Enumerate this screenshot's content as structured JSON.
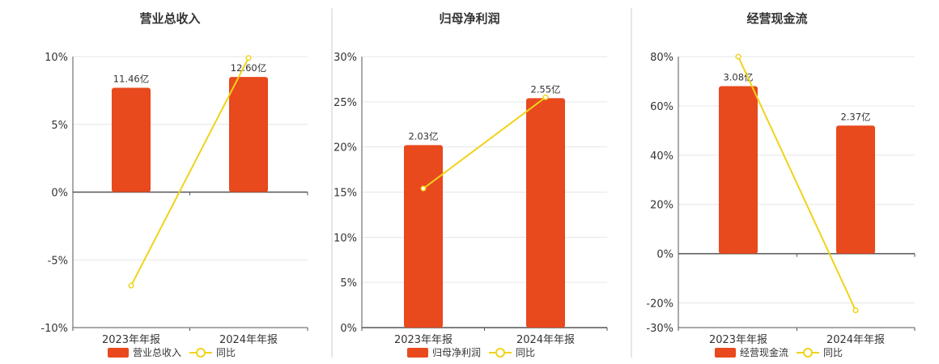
{
  "colors": {
    "bar": "#E8491D",
    "line": "#F0D31A",
    "grid": "#E6E6E6",
    "axis": "#555555",
    "divider": "#CCCCCC"
  },
  "chart_data": [
    {
      "type": "bar",
      "title": "营业总收入",
      "categories": [
        "2023年年报",
        "2024年年报"
      ],
      "series": [
        {
          "name": "营业总收入",
          "type": "bar",
          "values": [
            7.7,
            8.5
          ],
          "labels": [
            "11.46亿",
            "12.60亿"
          ]
        },
        {
          "name": "同比",
          "type": "line",
          "values": [
            -6.9,
            9.9
          ]
        }
      ],
      "ylim": [
        -10,
        10
      ],
      "yticks": [
        "10%",
        "5%",
        "0%",
        "-5%",
        "-10%"
      ],
      "ytick_values": [
        10,
        5,
        0,
        -5,
        -10
      ],
      "legend": "bottom",
      "grid": true
    },
    {
      "type": "bar",
      "title": "归母净利润",
      "categories": [
        "2023年年报",
        "2024年年报"
      ],
      "series": [
        {
          "name": "归母净利润",
          "type": "bar",
          "values": [
            20.2,
            25.4
          ],
          "labels": [
            "2.03亿",
            "2.55亿"
          ]
        },
        {
          "name": "同比",
          "type": "line",
          "values": [
            15.4,
            25.5
          ]
        }
      ],
      "ylim": [
        0,
        30
      ],
      "yticks": [
        "30%",
        "25%",
        "20%",
        "15%",
        "10%",
        "5%",
        "0%"
      ],
      "ytick_values": [
        30,
        25,
        20,
        15,
        10,
        5,
        0
      ],
      "legend": "bottom",
      "grid": true
    },
    {
      "type": "bar",
      "title": "经营现金流",
      "categories": [
        "2023年年报",
        "2024年年报"
      ],
      "series": [
        {
          "name": "经营现金流",
          "type": "bar",
          "values": [
            68,
            52
          ],
          "labels": [
            "3.08亿",
            "2.37亿"
          ]
        },
        {
          "name": "同比",
          "type": "line",
          "values": [
            80,
            -23
          ]
        }
      ],
      "ylim": [
        -30,
        80
      ],
      "yticks": [
        "80%",
        "60%",
        "40%",
        "20%",
        "0%",
        "-20%",
        "-30%"
      ],
      "ytick_values": [
        80,
        60,
        40,
        20,
        0,
        -20,
        -30
      ],
      "legend": "bottom",
      "grid": true
    }
  ]
}
